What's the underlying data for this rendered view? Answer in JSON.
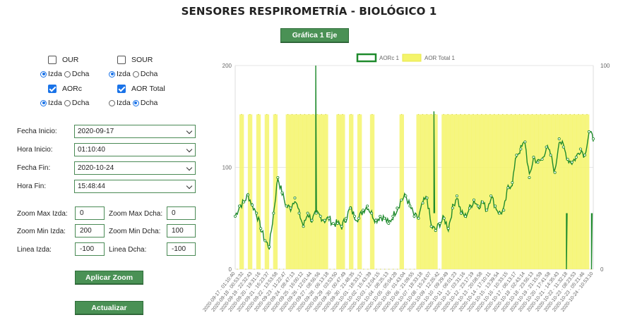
{
  "page": {
    "title": "SENSORES RESPIROMETRÍA - BIOLÓGICO 1"
  },
  "toolbar": {
    "axis_button": "Gráfica 1 Eje"
  },
  "series_controls": [
    {
      "label": "OUR",
      "checked": false,
      "axis": "Izda"
    },
    {
      "label": "SOUR",
      "checked": false,
      "axis": "Izda"
    },
    {
      "label": "AORc",
      "checked": true,
      "axis": "Izda"
    },
    {
      "label": "AOR Total",
      "checked": true,
      "axis": "Dcha"
    }
  ],
  "radio_labels": {
    "left": "Izda",
    "right": "Dcha"
  },
  "filters": {
    "fecha_inicio": {
      "label": "Fecha Inicio:",
      "value": "2020-09-17"
    },
    "hora_inicio": {
      "label": "Hora Inicio:",
      "value": "01:10:40"
    },
    "fecha_fin": {
      "label": "Fecha Fin:",
      "value": "2020-10-24"
    },
    "hora_fin": {
      "label": "Hora Fin:",
      "value": "15:48:44"
    }
  },
  "zoom": {
    "max_izda": {
      "label": "Zoom Max Izda:",
      "value": "0"
    },
    "max_dcha": {
      "label": "Zoom Max Dcha:",
      "value": "0"
    },
    "min_izda": {
      "label": "Zoom Min Izda:",
      "value": "200"
    },
    "min_dcha": {
      "label": "Zoom Min Dcha:",
      "value": "100"
    },
    "linea_izda": {
      "label": "Linea Izda:",
      "value": "-100"
    },
    "linea_dcha": {
      "label": "Linea Dcha:",
      "value": "-100"
    }
  },
  "buttons": {
    "apply_zoom": "Aplicar Zoom",
    "refresh": "Actualizar"
  },
  "colors": {
    "aorc": "#1e8a2c",
    "aor_total": "#f4f46a",
    "button": "#4a9155"
  },
  "chart_data": {
    "type": "line",
    "left_axis": {
      "ticks": [
        "0",
        "100",
        "200"
      ],
      "range": [
        0,
        200
      ]
    },
    "right_axis": {
      "ticks": [
        "0",
        "100"
      ],
      "range": [
        0,
        100
      ]
    },
    "legend_position": "top-center",
    "x_labels": [
      "2020-09-17 - 01:10:40",
      "2020-09-18 - 00:53:32",
      "2020-09-19 - 22:32:43",
      "2020-09-20 - 19:31:16",
      "2020-09-21 - 16:23:37",
      "2020-09-22 - 13:53:58",
      "2020-09-23 - 11:22:47",
      "2020-09-24 - 08:47:13",
      "2020-09-25 - 16:00:12",
      "2020-09-26 - 12:01:44",
      "2020-09-27 - 08:56:56",
      "2020-09-28 - 06:13:18",
      "2020-09-29 - 03:53:50",
      "2020-09-30 - 00:47:49",
      "2020-09-30 - 21:48:35",
      "2020-10-01 - 18:33:17",
      "2020-10-02 - 15:43:39",
      "2020-10-03 - 12:04:15",
      "2020-10-04 - 08:25:13",
      "2020-10-05 - 05:04:28",
      "2020-10-06 - 01:43:04",
      "2020-10-06 - 21:09:55",
      "2020-10-07 - 18:33:18",
      "2020-10-08 - 15:24:07",
      "2020-10-09 - 12:26:42",
      "2020-10-10 - 09:29:49",
      "2020-10-11 - 06:01:23",
      "2020-10-12 - 03:31:16",
      "2020-10-12 - 23:17:19",
      "2020-10-13 - 20:08:58",
      "2020-10-14 - 17:10:11",
      "2020-10-15 - 13:39:54",
      "2020-10-16 - 10:33:15",
      "2020-10-17 - 06:13:17",
      "2020-10-18 - 02:43:14",
      "2020-10-18 - 23:56:13",
      "2020-10-19 - 21:15:59",
      "2020-10-20 - 17:41:58",
      "2020-10-21 - 14:35:43",
      "2020-10-22 - 11:32:18",
      "2020-10-23 - 08:23:53",
      "2020-10-23 - 05:21:46",
      "2020-10-24 - 10:53:10"
    ],
    "series": [
      {
        "name": "AORc 1",
        "axis": "left",
        "values": [
          52,
          62,
          66,
          73,
          63,
          55,
          40,
          28,
          22,
          55,
          90,
          75,
          62,
          60,
          70,
          55,
          42,
          55,
          48,
          55,
          52,
          48,
          50,
          45,
          45,
          42,
          50,
          60,
          52,
          50,
          58,
          62,
          55,
          48,
          52,
          50,
          45,
          52,
          60,
          68,
          72,
          62,
          52,
          50,
          65,
          70,
          42,
          38,
          45,
          50,
          40,
          60,
          72,
          55,
          52,
          60,
          68,
          62,
          66,
          58,
          72,
          62,
          55,
          58,
          80,
          85,
          112,
          118,
          125,
          90,
          110,
          105,
          108,
          120,
          112,
          95,
          128,
          120,
          108,
          105,
          110,
          118,
          112,
          135,
          128
        ]
      },
      {
        "name": "AOR Total 1",
        "axis": "right",
        "values": [
          0,
          76,
          0,
          76,
          0,
          76,
          0,
          76,
          0,
          76,
          0,
          0,
          76,
          76,
          76,
          76,
          76,
          76,
          76,
          76,
          76,
          76,
          0,
          0,
          76,
          76,
          0,
          76,
          0,
          76,
          0,
          0,
          76,
          0,
          0,
          0,
          0,
          0,
          0,
          76,
          0,
          0,
          0,
          76,
          76,
          76,
          76,
          76,
          0,
          76,
          76,
          76,
          76,
          76,
          76,
          76,
          76,
          76,
          76,
          76,
          76,
          76,
          76,
          76,
          76,
          76,
          76,
          76,
          76,
          76,
          76,
          76,
          76,
          76,
          76,
          76,
          76,
          76,
          76,
          76,
          76,
          76,
          76,
          76,
          0
        ]
      }
    ]
  }
}
